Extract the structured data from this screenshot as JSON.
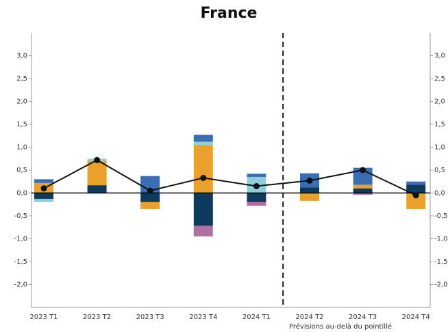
{
  "chart_data": {
    "type": "stacked_bar",
    "title": "France",
    "annotation": "Prévisions au-delà du pointillé",
    "categories": [
      "2023 T1",
      "2023 T2",
      "2023 T3",
      "2023 T4",
      "2024 T1",
      "2024 T2",
      "2024 T3",
      "2024 T4"
    ],
    "series": [
      {
        "color": "#0d3b5e",
        "values": [
          -0.13,
          0.17,
          -0.2,
          -0.72,
          -0.2,
          0.12,
          0.1,
          0.18
        ]
      },
      {
        "color": "#e9a12c",
        "values": [
          0.22,
          0.53,
          -0.15,
          1.05,
          0,
          -0.17,
          0.08,
          -0.35
        ]
      },
      {
        "color": "#8fcfd8",
        "values": [
          -0.07,
          0.05,
          0,
          0.07,
          0.35,
          0,
          0,
          0
        ]
      },
      {
        "color": "#3a6db4",
        "values": [
          0.08,
          0,
          0.37,
          0.15,
          0.07,
          0.31,
          0.37,
          0.07
        ]
      },
      {
        "color": "#b26fa3",
        "values": [
          0,
          0,
          0,
          -0.23,
          -0.08,
          0,
          -0.04,
          0
        ]
      }
    ],
    "line": {
      "color": "#111111",
      "values": [
        0.1,
        0.72,
        0.05,
        0.33,
        0.15,
        0.27,
        0.5,
        -0.05
      ]
    },
    "forecast_after_index": 4,
    "ylim": [
      -2.5,
      3.5
    ],
    "yticks": [
      {
        "value": -2,
        "label": "-2,0"
      },
      {
        "value": -1.5,
        "label": "-1,5"
      },
      {
        "value": -1,
        "label": "-1,0"
      },
      {
        "value": -0.5,
        "label": "-0,5"
      },
      {
        "value": 0,
        "label": "0,0"
      },
      {
        "value": 0.5,
        "label": "0,5"
      },
      {
        "value": 1,
        "label": "1,0"
      },
      {
        "value": 1.5,
        "label": "1,5"
      },
      {
        "value": 2,
        "label": "2,0"
      },
      {
        "value": 2.5,
        "label": "2,5"
      },
      {
        "value": 3,
        "label": "3,0"
      }
    ],
    "y2lim": [
      -2.5,
      3.5
    ],
    "y2ticks": [
      {
        "value": -2,
        "label": "-2,0"
      },
      {
        "value": -1.5,
        "label": "-1,5"
      },
      {
        "value": -1,
        "label": "-1,0"
      },
      {
        "value": -0.5,
        "label": "-0,5"
      },
      {
        "value": 0,
        "label": "0,0"
      },
      {
        "value": 0.5,
        "label": "0,5"
      },
      {
        "value": 1,
        "label": "1,0"
      },
      {
        "value": 1.5,
        "label": "1,5"
      },
      {
        "value": 2,
        "label": "2,0"
      },
      {
        "value": 2.5,
        "label": "2,5"
      },
      {
        "value": 3,
        "label": "3,0"
      }
    ],
    "grid": false
  }
}
